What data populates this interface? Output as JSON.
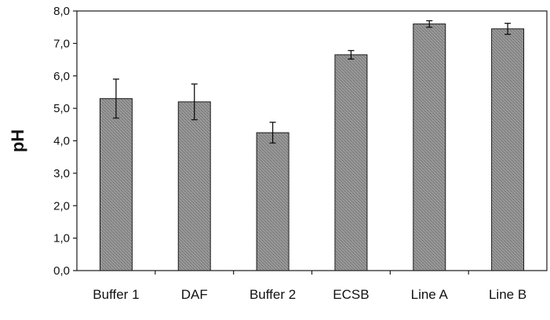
{
  "chart_data": {
    "type": "bar",
    "title": "",
    "xlabel": "",
    "ylabel": "pH",
    "categories": [
      "Buffer 1",
      "DAF",
      "Buffer 2",
      "ECSB",
      "Line A",
      "Line B"
    ],
    "values": [
      5.3,
      5.2,
      4.25,
      6.65,
      7.6,
      7.45
    ],
    "error": [
      0.6,
      0.55,
      0.32,
      0.13,
      0.1,
      0.17
    ],
    "ylim": [
      0,
      8
    ],
    "yticks": [
      "0,0",
      "1,0",
      "2,0",
      "3,0",
      "4,0",
      "5,0",
      "6,0",
      "7,0",
      "8,0"
    ],
    "grid": false,
    "legend": "none",
    "colors": {
      "bar_fill": "#8f8f8f",
      "bar_edge": "#1a1a1a",
      "axis": "#1a1a1a"
    }
  }
}
